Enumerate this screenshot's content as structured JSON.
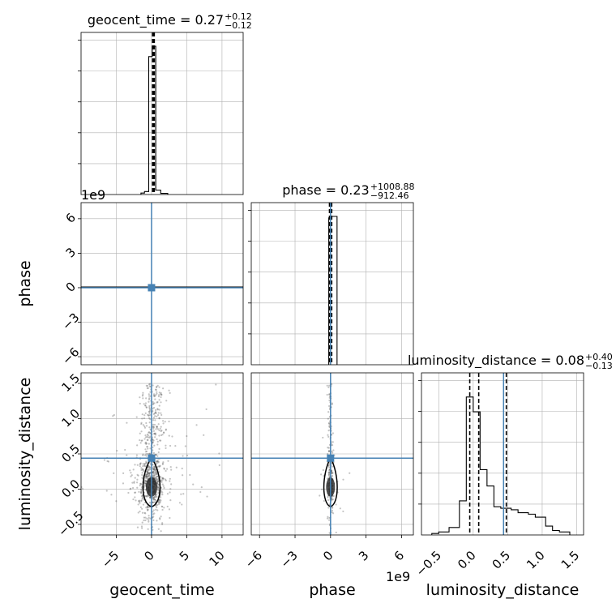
{
  "figure": {
    "colors": {
      "hist": "#000000",
      "truth": "#4682b4",
      "grid": "#b0b0b0",
      "points": "#555555",
      "quantile_lines": "#000000"
    }
  },
  "chart_data": [
    {
      "panel": "hist-geocent_time",
      "type": "bar",
      "title_param": "geocent_time",
      "title_value": "0.27",
      "title_plus": "+0.12",
      "title_minus": "−0.12",
      "xlim": [
        -10,
        13
      ],
      "bins": [
        [
          -1.5,
          -1.0,
          0.01
        ],
        [
          -1.0,
          -0.4,
          0.02
        ],
        [
          -0.4,
          0.1,
          0.93
        ],
        [
          0.1,
          0.6,
          1.0
        ],
        [
          0.6,
          1.3,
          0.03
        ],
        [
          1.3,
          2.3,
          0.008
        ]
      ],
      "quantile_lines": [
        0.15,
        0.27,
        0.39
      ],
      "grid": true
    },
    {
      "panel": "hist-phase",
      "type": "bar",
      "title_param": "phase",
      "title_value": "0.23",
      "title_plus": "+1008.88",
      "title_minus": "−912.46",
      "xlim": [
        -6.7,
        7.0
      ],
      "bins": [
        [
          -0.15,
          0.05,
          0.99
        ],
        [
          0.05,
          0.55,
          1.0
        ]
      ],
      "quantile_lines": [
        -0.09,
        0.0,
        0.1
      ],
      "truth": 0.0,
      "grid": true
    },
    {
      "panel": "hist-luminosity_distance",
      "type": "bar",
      "title_param": "luminosity_distance",
      "title_value": "0.08",
      "title_plus": "+0.40",
      "title_minus": "−0.13",
      "xlim": [
        -0.75,
        1.6
      ],
      "bins": [
        [
          -0.6,
          -0.5,
          0.01
        ],
        [
          -0.5,
          -0.35,
          0.02
        ],
        [
          -0.35,
          -0.2,
          0.05
        ],
        [
          -0.2,
          -0.1,
          0.23
        ],
        [
          -0.1,
          0.0,
          0.93
        ],
        [
          0.0,
          0.1,
          0.83
        ],
        [
          0.1,
          0.2,
          0.44
        ],
        [
          0.2,
          0.3,
          0.33
        ],
        [
          0.3,
          0.4,
          0.19
        ],
        [
          0.4,
          0.55,
          0.18
        ],
        [
          0.55,
          0.65,
          0.17
        ],
        [
          0.65,
          0.8,
          0.15
        ],
        [
          0.8,
          0.9,
          0.14
        ],
        [
          0.9,
          1.05,
          0.12
        ],
        [
          1.05,
          1.15,
          0.06
        ],
        [
          1.15,
          1.25,
          0.03
        ],
        [
          1.25,
          1.4,
          0.02
        ]
      ],
      "quantile_lines": [
        -0.05,
        0.08,
        0.48
      ],
      "truth": 0.44,
      "grid": true
    },
    {
      "panel": "scatter-geocent_time-phase",
      "type": "scatter",
      "xlim": [
        -10,
        13
      ],
      "ylim": [
        -6.7,
        7.4
      ],
      "truth_x": 0.0,
      "truth_y": 0.0,
      "grid": true
    },
    {
      "panel": "scatter-geocent_time-luminosity_distance",
      "type": "scatter",
      "xlim": [
        -10,
        13
      ],
      "ylim": [
        -0.65,
        1.65
      ],
      "truth_x": 0.0,
      "truth_y": 0.44,
      "grid": true
    },
    {
      "panel": "scatter-phase-luminosity_distance",
      "type": "scatter",
      "xlim": [
        -6.7,
        7.0
      ],
      "ylim": [
        -0.65,
        1.65
      ],
      "truth_x": 0.0,
      "truth_y": 0.44,
      "grid": true
    }
  ],
  "axes": {
    "x_labels": [
      "geocent_time",
      "phase",
      "luminosity_distance"
    ],
    "y_labels": [
      "phase",
      "luminosity_distance"
    ],
    "x_ticks": {
      "geocent_time": [
        [
          -5,
          "−5"
        ],
        [
          0,
          "0"
        ],
        [
          5,
          "5"
        ],
        [
          10,
          "10"
        ]
      ],
      "phase": [
        [
          -6,
          "−6"
        ],
        [
          -3,
          "−3"
        ],
        [
          0,
          "0"
        ],
        [
          3,
          "3"
        ],
        [
          6,
          "6"
        ]
      ],
      "luminosity_distance": [
        [
          -0.5,
          "−0.5"
        ],
        [
          0.0,
          "0.0"
        ],
        [
          0.5,
          "0.5"
        ],
        [
          1.0,
          "1.0"
        ],
        [
          1.5,
          "1.5"
        ]
      ]
    },
    "y_ticks": {
      "phase": [
        [
          -6,
          "−6"
        ],
        [
          -3,
          "−3"
        ],
        [
          0,
          "0"
        ],
        [
          3,
          "3"
        ],
        [
          6,
          "6"
        ]
      ],
      "luminosity_distance": [
        [
          -0.5,
          "−0.5"
        ],
        [
          0.0,
          "0.0"
        ],
        [
          0.5,
          "0.5"
        ],
        [
          1.0,
          "1.0"
        ],
        [
          1.5,
          "1.5"
        ]
      ]
    },
    "offset_label_top": "1e9",
    "offset_label_bottom": "1e9"
  }
}
